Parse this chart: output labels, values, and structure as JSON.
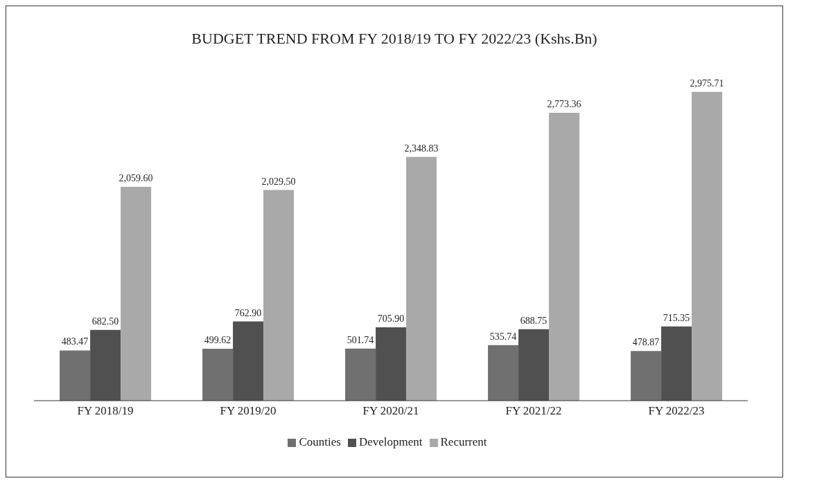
{
  "chart_data": {
    "type": "bar",
    "title": "BUDGET TREND FROM FY 2018/19 TO FY 2022/23 (Kshs.Bn)",
    "categories": [
      "FY 2018/19",
      "FY 2019/20",
      "FY 2020/21",
      "FY 2021/22",
      "FY 2022/23"
    ],
    "series": [
      {
        "name": "Counties",
        "color": "#707070",
        "values": [
          483.47,
          499.62,
          501.74,
          535.74,
          478.87
        ],
        "value_labels": [
          "483.47",
          "499.62",
          "501.74",
          "535.74",
          "478.87"
        ]
      },
      {
        "name": "Development",
        "color": "#505050",
        "values": [
          682.5,
          762.9,
          705.9,
          688.75,
          715.35
        ],
        "value_labels": [
          "682.50",
          "762.90",
          "705.90",
          "688.75",
          "715.35"
        ]
      },
      {
        "name": "Recurrent",
        "color": "#a9a9a9",
        "values": [
          2059.6,
          2029.5,
          2348.83,
          2773.36,
          2975.71
        ],
        "value_labels": [
          "2,059.60",
          "2,029.50",
          "2,348.83",
          "2,773.36",
          "2,975.71"
        ]
      }
    ],
    "legend": "bottom"
  }
}
